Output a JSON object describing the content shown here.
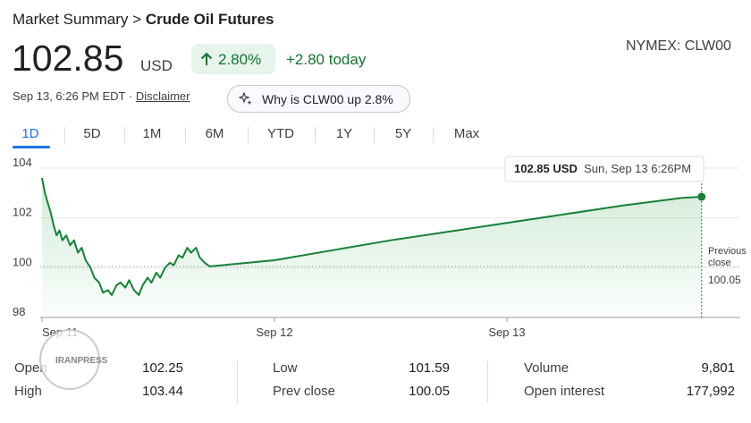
{
  "header": {
    "breadcrumb_parent": "Market Summary",
    "breadcrumb_separator": ">",
    "title": "Crude Oil Futures",
    "price": "102.85",
    "currency": "USD",
    "change_percent": "2.80%",
    "change_today": "+2.80 today",
    "exchange": "NYMEX: CLW00",
    "timestamp": "Sep 13, 6:26 PM EDT",
    "separator": "·",
    "disclaimer": "Disclaimer",
    "ai_prompt": "Why is CLW00 up 2.8%"
  },
  "tabs": [
    "1D",
    "5D",
    "1M",
    "6M",
    "YTD",
    "1Y",
    "5Y",
    "Max"
  ],
  "chart_data": {
    "type": "line",
    "x": [
      0,
      0.3,
      0.6,
      0.9,
      1.2,
      1.5,
      1.8,
      2.1,
      2.5,
      2.9,
      3.3,
      3.7,
      4.1,
      4.5,
      5.0,
      5.4,
      5.9,
      6.3,
      6.8,
      7.2,
      7.7,
      8.1,
      8.6,
      9.0,
      9.5,
      10.0,
      10.4,
      10.9,
      11.3,
      11.8,
      12.2,
      12.7,
      13.2,
      13.6,
      14.1,
      14.5,
      15.0,
      15.4,
      15.9,
      16.3,
      16.8,
      17.3,
      24,
      30,
      36,
      42,
      48,
      54,
      60,
      66,
      68.1
    ],
    "series": [
      {
        "color": "#188038",
        "values": [
          103.6,
          103.0,
          102.6,
          102.2,
          101.7,
          101.3,
          101.5,
          101.1,
          101.3,
          100.9,
          101.1,
          100.6,
          100.8,
          100.3,
          100.0,
          99.6,
          99.4,
          99.0,
          99.1,
          98.9,
          99.3,
          99.4,
          99.2,
          99.5,
          99.1,
          98.9,
          99.3,
          99.6,
          99.4,
          99.8,
          99.6,
          100.0,
          100.2,
          100.1,
          100.5,
          100.4,
          100.8,
          100.6,
          100.8,
          100.4,
          100.2,
          100.05,
          100.3,
          100.7,
          101.1,
          101.45,
          101.8,
          102.15,
          102.5,
          102.8,
          102.85
        ]
      }
    ],
    "xlim": [
      0,
      72
    ],
    "xticks": [
      {
        "value": 0,
        "label": "Sep 11"
      },
      {
        "value": 24,
        "label": "Sep 12"
      },
      {
        "value": 48,
        "label": "Sep 13"
      }
    ],
    "ylim": [
      98,
      104
    ],
    "yticks": [
      98,
      100,
      102,
      104
    ],
    "grid": true,
    "previous_close": 100.05,
    "previous_close_label": "Previous close",
    "tooltip": {
      "value": 102.85,
      "unit": "USD",
      "time": "Sun, Sep 13 6:26PM"
    }
  },
  "stats": [
    [
      {
        "label": "Open",
        "value": "102.25"
      },
      {
        "label": "High",
        "value": "103.44"
      }
    ],
    [
      {
        "label": "Low",
        "value": "101.59"
      },
      {
        "label": "Prev close",
        "value": "100.05"
      }
    ],
    [
      {
        "label": "Volume",
        "value": "9,801"
      },
      {
        "label": "Open interest",
        "value": "177,992"
      }
    ]
  ],
  "watermark": "IRANPRESS"
}
